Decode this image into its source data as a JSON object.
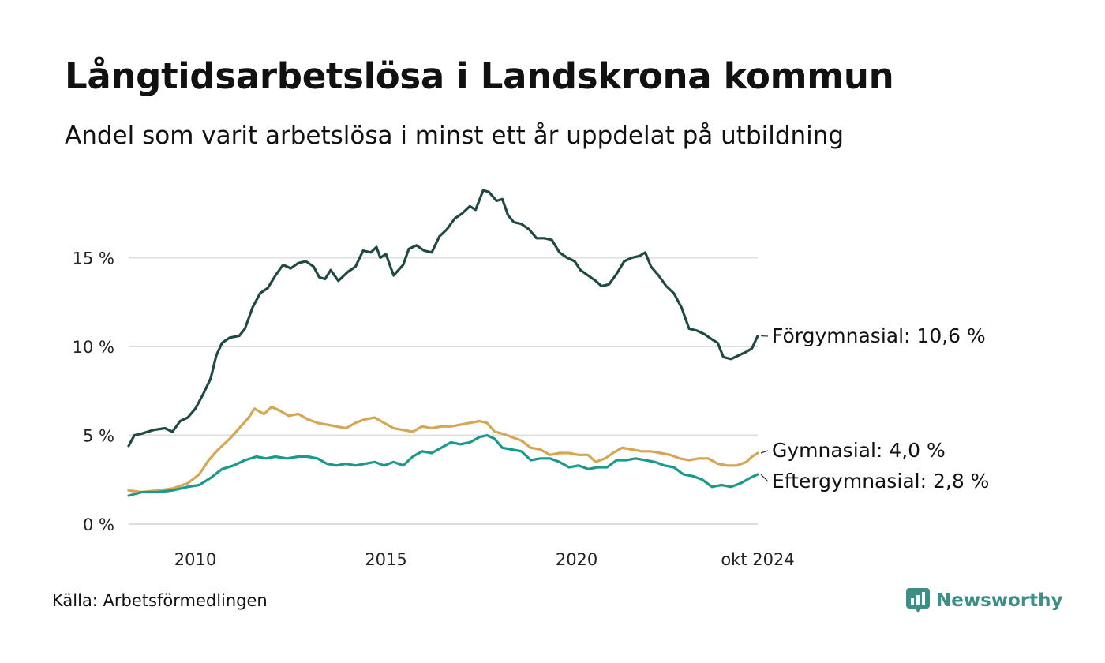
{
  "header": {
    "title": "Långtidsarbetslösa i Landskrona kommun",
    "subtitle": "Andel som varit arbetslösa i minst ett år uppdelat på utbildning"
  },
  "footer": {
    "source": "Källa: Arbetsförmedlingen",
    "brand": "Newsworthy",
    "brand_icon": "newsworthy-logo-icon",
    "brand_color": "#3a8f86"
  },
  "chart_data": {
    "type": "line",
    "x_start": 2008.25,
    "x_end": 2024.75,
    "ylim": [
      0,
      19
    ],
    "y_ticks": [
      0,
      5,
      10,
      15
    ],
    "y_tick_labels": [
      "0 %",
      "5 %",
      "10 %",
      "15 %"
    ],
    "x_ticks": [
      2010,
      2015,
      2020,
      2024.75
    ],
    "x_tick_labels": [
      "2010",
      "2015",
      "2020",
      "okt 2024"
    ],
    "grid": true,
    "series": [
      {
        "name": "Förgymnasial",
        "end_label": "Förgymnasial: 10,6 %",
        "color": "#1f4a44",
        "points": [
          [
            2008.25,
            4.4
          ],
          [
            2008.4,
            5.0
          ],
          [
            2008.6,
            5.1
          ],
          [
            2008.9,
            5.3
          ],
          [
            2009.2,
            5.4
          ],
          [
            2009.4,
            5.2
          ],
          [
            2009.6,
            5.8
          ],
          [
            2009.8,
            6.0
          ],
          [
            2010.0,
            6.5
          ],
          [
            2010.2,
            7.3
          ],
          [
            2010.4,
            8.2
          ],
          [
            2010.55,
            9.5
          ],
          [
            2010.7,
            10.2
          ],
          [
            2010.9,
            10.5
          ],
          [
            2011.15,
            10.6
          ],
          [
            2011.3,
            11.0
          ],
          [
            2011.5,
            12.2
          ],
          [
            2011.7,
            13.0
          ],
          [
            2011.9,
            13.3
          ],
          [
            2012.1,
            14.0
          ],
          [
            2012.3,
            14.6
          ],
          [
            2012.5,
            14.4
          ],
          [
            2012.7,
            14.7
          ],
          [
            2012.9,
            14.8
          ],
          [
            2013.1,
            14.5
          ],
          [
            2013.25,
            13.9
          ],
          [
            2013.4,
            13.8
          ],
          [
            2013.55,
            14.3
          ],
          [
            2013.75,
            13.7
          ],
          [
            2014.0,
            14.2
          ],
          [
            2014.2,
            14.5
          ],
          [
            2014.4,
            15.4
          ],
          [
            2014.6,
            15.3
          ],
          [
            2014.75,
            15.6
          ],
          [
            2014.85,
            15.0
          ],
          [
            2015.0,
            15.2
          ],
          [
            2015.2,
            14.0
          ],
          [
            2015.45,
            14.6
          ],
          [
            2015.6,
            15.5
          ],
          [
            2015.8,
            15.7
          ],
          [
            2016.0,
            15.4
          ],
          [
            2016.2,
            15.3
          ],
          [
            2016.4,
            16.2
          ],
          [
            2016.6,
            16.6
          ],
          [
            2016.8,
            17.2
          ],
          [
            2017.0,
            17.5
          ],
          [
            2017.2,
            17.9
          ],
          [
            2017.35,
            17.7
          ],
          [
            2017.55,
            18.8
          ],
          [
            2017.7,
            18.7
          ],
          [
            2017.9,
            18.2
          ],
          [
            2018.05,
            18.3
          ],
          [
            2018.2,
            17.4
          ],
          [
            2018.35,
            17.0
          ],
          [
            2018.55,
            16.9
          ],
          [
            2018.75,
            16.6
          ],
          [
            2018.95,
            16.1
          ],
          [
            2019.15,
            16.1
          ],
          [
            2019.35,
            16.0
          ],
          [
            2019.55,
            15.3
          ],
          [
            2019.75,
            15.0
          ],
          [
            2019.95,
            14.8
          ],
          [
            2020.1,
            14.3
          ],
          [
            2020.3,
            14.0
          ],
          [
            2020.5,
            13.7
          ],
          [
            2020.65,
            13.4
          ],
          [
            2020.85,
            13.5
          ],
          [
            2021.05,
            14.1
          ],
          [
            2021.25,
            14.8
          ],
          [
            2021.45,
            15.0
          ],
          [
            2021.65,
            15.1
          ],
          [
            2021.8,
            15.3
          ],
          [
            2021.95,
            14.5
          ],
          [
            2022.15,
            14.0
          ],
          [
            2022.35,
            13.4
          ],
          [
            2022.55,
            13.0
          ],
          [
            2022.75,
            12.2
          ],
          [
            2022.95,
            11.0
          ],
          [
            2023.15,
            10.9
          ],
          [
            2023.35,
            10.7
          ],
          [
            2023.55,
            10.4
          ],
          [
            2023.7,
            10.2
          ],
          [
            2023.85,
            9.4
          ],
          [
            2024.05,
            9.3
          ],
          [
            2024.25,
            9.5
          ],
          [
            2024.45,
            9.7
          ],
          [
            2024.6,
            9.9
          ],
          [
            2024.75,
            10.6
          ]
        ]
      },
      {
        "name": "Gymnasial",
        "end_label": "Gymnasial:  4,0 %",
        "color": "#d4a655",
        "points": [
          [
            2008.25,
            1.9
          ],
          [
            2008.6,
            1.8
          ],
          [
            2009.0,
            1.9
          ],
          [
            2009.4,
            2.0
          ],
          [
            2009.8,
            2.3
          ],
          [
            2010.1,
            2.8
          ],
          [
            2010.35,
            3.6
          ],
          [
            2010.6,
            4.2
          ],
          [
            2010.9,
            4.8
          ],
          [
            2011.15,
            5.4
          ],
          [
            2011.4,
            6.0
          ],
          [
            2011.55,
            6.5
          ],
          [
            2011.8,
            6.2
          ],
          [
            2012.0,
            6.6
          ],
          [
            2012.2,
            6.4
          ],
          [
            2012.45,
            6.1
          ],
          [
            2012.7,
            6.2
          ],
          [
            2012.95,
            5.9
          ],
          [
            2013.2,
            5.7
          ],
          [
            2013.45,
            5.6
          ],
          [
            2013.7,
            5.5
          ],
          [
            2013.95,
            5.4
          ],
          [
            2014.2,
            5.7
          ],
          [
            2014.45,
            5.9
          ],
          [
            2014.7,
            6.0
          ],
          [
            2014.95,
            5.7
          ],
          [
            2015.2,
            5.4
          ],
          [
            2015.45,
            5.3
          ],
          [
            2015.7,
            5.2
          ],
          [
            2015.95,
            5.5
          ],
          [
            2016.2,
            5.4
          ],
          [
            2016.45,
            5.5
          ],
          [
            2016.7,
            5.5
          ],
          [
            2016.95,
            5.6
          ],
          [
            2017.2,
            5.7
          ],
          [
            2017.45,
            5.8
          ],
          [
            2017.65,
            5.7
          ],
          [
            2017.85,
            5.2
          ],
          [
            2018.05,
            5.1
          ],
          [
            2018.3,
            4.9
          ],
          [
            2018.55,
            4.7
          ],
          [
            2018.8,
            4.3
          ],
          [
            2019.05,
            4.2
          ],
          [
            2019.3,
            3.9
          ],
          [
            2019.55,
            4.0
          ],
          [
            2019.8,
            4.0
          ],
          [
            2020.05,
            3.9
          ],
          [
            2020.3,
            3.9
          ],
          [
            2020.5,
            3.5
          ],
          [
            2020.75,
            3.7
          ],
          [
            2020.95,
            4.0
          ],
          [
            2021.2,
            4.3
          ],
          [
            2021.45,
            4.2
          ],
          [
            2021.7,
            4.1
          ],
          [
            2021.95,
            4.1
          ],
          [
            2022.2,
            4.0
          ],
          [
            2022.45,
            3.9
          ],
          [
            2022.7,
            3.7
          ],
          [
            2022.95,
            3.6
          ],
          [
            2023.2,
            3.7
          ],
          [
            2023.45,
            3.7
          ],
          [
            2023.7,
            3.4
          ],
          [
            2023.95,
            3.3
          ],
          [
            2024.2,
            3.3
          ],
          [
            2024.45,
            3.5
          ],
          [
            2024.6,
            3.8
          ],
          [
            2024.75,
            4.0
          ]
        ]
      },
      {
        "name": "Eftergymnasial",
        "end_label": "Eftergymnasial:  2,8 %",
        "color": "#1b998b",
        "points": [
          [
            2008.25,
            1.6
          ],
          [
            2008.6,
            1.8
          ],
          [
            2009.0,
            1.8
          ],
          [
            2009.4,
            1.9
          ],
          [
            2009.8,
            2.1
          ],
          [
            2010.1,
            2.2
          ],
          [
            2010.4,
            2.6
          ],
          [
            2010.7,
            3.1
          ],
          [
            2011.0,
            3.3
          ],
          [
            2011.3,
            3.6
          ],
          [
            2011.6,
            3.8
          ],
          [
            2011.85,
            3.7
          ],
          [
            2012.1,
            3.8
          ],
          [
            2012.4,
            3.7
          ],
          [
            2012.7,
            3.8
          ],
          [
            2012.95,
            3.8
          ],
          [
            2013.2,
            3.7
          ],
          [
            2013.45,
            3.4
          ],
          [
            2013.7,
            3.3
          ],
          [
            2013.95,
            3.4
          ],
          [
            2014.2,
            3.3
          ],
          [
            2014.45,
            3.4
          ],
          [
            2014.7,
            3.5
          ],
          [
            2014.95,
            3.3
          ],
          [
            2015.2,
            3.5
          ],
          [
            2015.45,
            3.3
          ],
          [
            2015.7,
            3.8
          ],
          [
            2015.95,
            4.1
          ],
          [
            2016.2,
            4.0
          ],
          [
            2016.45,
            4.3
          ],
          [
            2016.7,
            4.6
          ],
          [
            2016.95,
            4.5
          ],
          [
            2017.2,
            4.6
          ],
          [
            2017.45,
            4.9
          ],
          [
            2017.65,
            5.0
          ],
          [
            2017.85,
            4.8
          ],
          [
            2018.05,
            4.3
          ],
          [
            2018.3,
            4.2
          ],
          [
            2018.55,
            4.1
          ],
          [
            2018.8,
            3.6
          ],
          [
            2019.05,
            3.7
          ],
          [
            2019.3,
            3.7
          ],
          [
            2019.55,
            3.5
          ],
          [
            2019.8,
            3.2
          ],
          [
            2020.05,
            3.3
          ],
          [
            2020.3,
            3.1
          ],
          [
            2020.55,
            3.2
          ],
          [
            2020.8,
            3.2
          ],
          [
            2021.05,
            3.6
          ],
          [
            2021.3,
            3.6
          ],
          [
            2021.55,
            3.7
          ],
          [
            2021.8,
            3.6
          ],
          [
            2022.05,
            3.5
          ],
          [
            2022.3,
            3.3
          ],
          [
            2022.55,
            3.2
          ],
          [
            2022.8,
            2.8
          ],
          [
            2023.05,
            2.7
          ],
          [
            2023.3,
            2.5
          ],
          [
            2023.55,
            2.1
          ],
          [
            2023.8,
            2.2
          ],
          [
            2024.05,
            2.1
          ],
          [
            2024.3,
            2.3
          ],
          [
            2024.55,
            2.6
          ],
          [
            2024.75,
            2.8
          ]
        ]
      }
    ]
  }
}
